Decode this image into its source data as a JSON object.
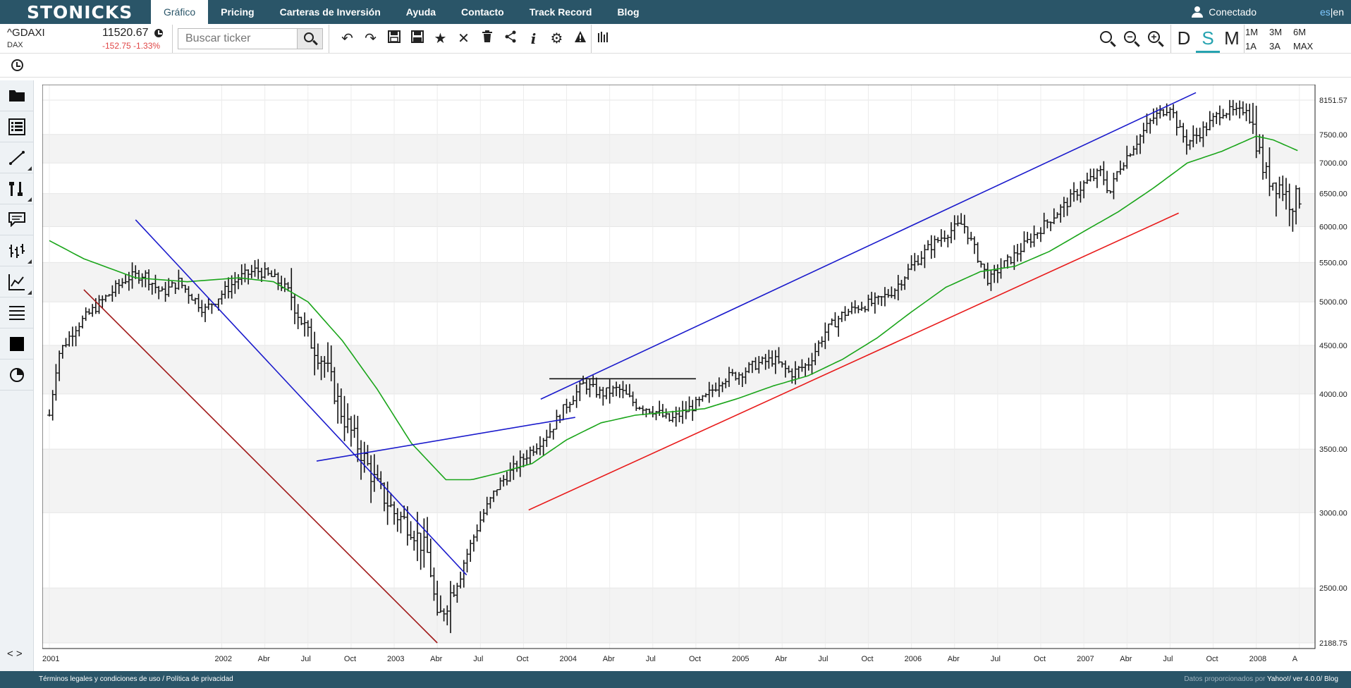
{
  "nav": {
    "brand": "STONICKS",
    "items": [
      "Gráfico",
      "Pricing",
      "Carteras de Inversión",
      "Ayuda",
      "Contacto",
      "Track Record",
      "Blog"
    ],
    "user": "Conectado",
    "lang_es": "es",
    "lang_sep": "|",
    "lang_en": "en"
  },
  "ticker": {
    "symbol": "^GDAXI",
    "name": "DAX",
    "price": "11520.67",
    "change": "-152.75 -1.33%"
  },
  "search": {
    "placeholder": "Buscar ticker"
  },
  "toolbar_icons": [
    "undo-icon",
    "redo-icon",
    "save-icon",
    "save-all-icon",
    "star-icon",
    "delete-icon",
    "trash-icon",
    "share-icon",
    "info-icon",
    "settings-icon",
    "warning-icon",
    "bars-icon"
  ],
  "periods": [
    "D",
    "S",
    "M"
  ],
  "active_period": "S",
  "ranges": [
    "1M",
    "3M",
    "6M",
    "1A",
    "3A",
    "MAX"
  ],
  "sidebar_icons": [
    "folder-icon",
    "list-icon",
    "line-tool-icon",
    "tools-icon",
    "comment-icon",
    "indicator-icon",
    "line-chart-icon",
    "lines-icon",
    "color-square-icon",
    "pie-icon"
  ],
  "expand_label": "< >",
  "footer": {
    "left": "Términos legales y condiciones de uso / Política de privacidad",
    "right_prefix": "Datos proporcionados por",
    "right_links": "Yahoo!/ ver 4.0.0/ Blog"
  },
  "chart_data": {
    "type": "bar",
    "subtype": "ohlc-weekly",
    "scale": "log",
    "ylim": [
      2188.75,
      8151.57
    ],
    "y_ticks": [
      "8151.57",
      "7500.00",
      "7000.00",
      "6500.00",
      "6000.00",
      "5500.00",
      "5000.00",
      "4500.00",
      "4000.00",
      "3500.00",
      "3000.00",
      "2500.00",
      "2188.75"
    ],
    "x_ticks": [
      "2001",
      "2002",
      "Abr",
      "Jul",
      "Oct",
      "2003",
      "Abr",
      "Jul",
      "Oct",
      "2004",
      "Abr",
      "Jul",
      "Oct",
      "2005",
      "Abr",
      "Jul",
      "Oct",
      "2006",
      "Abr",
      "Jul",
      "Oct",
      "2007",
      "Abr",
      "Jul",
      "Oct",
      "2008",
      "A"
    ],
    "grid": true,
    "close_path": [
      [
        2001.0,
        3800
      ],
      [
        2001.05,
        4400
      ],
      [
        2001.15,
        4700
      ],
      [
        2001.3,
        5000
      ],
      [
        2001.45,
        5300
      ],
      [
        2001.55,
        5350
      ],
      [
        2001.65,
        5100
      ],
      [
        2001.75,
        5250
      ],
      [
        2001.9,
        4900
      ],
      [
        2002.0,
        5100
      ],
      [
        2002.1,
        5300
      ],
      [
        2002.2,
        5400
      ],
      [
        2002.3,
        5300
      ],
      [
        2002.4,
        5100
      ],
      [
        2002.5,
        4600
      ],
      [
        2002.6,
        4300
      ],
      [
        2002.7,
        3800
      ],
      [
        2002.8,
        3500
      ],
      [
        2002.9,
        3200
      ],
      [
        2003.0,
        3000
      ],
      [
        2003.1,
        2900
      ],
      [
        2003.2,
        2700
      ],
      [
        2003.25,
        2300
      ],
      [
        2003.32,
        2450
      ],
      [
        2003.4,
        2650
      ],
      [
        2003.5,
        2950
      ],
      [
        2003.6,
        3200
      ],
      [
        2003.7,
        3350
      ],
      [
        2003.8,
        3500
      ],
      [
        2003.9,
        3650
      ],
      [
        2004.0,
        3900
      ],
      [
        2004.1,
        4100
      ],
      [
        2004.2,
        4000
      ],
      [
        2004.3,
        4050
      ],
      [
        2004.4,
        3900
      ],
      [
        2004.5,
        3850
      ],
      [
        2004.6,
        3750
      ],
      [
        2004.7,
        3850
      ],
      [
        2004.8,
        3950
      ],
      [
        2004.9,
        4150
      ],
      [
        2005.0,
        4200
      ],
      [
        2005.1,
        4300
      ],
      [
        2005.2,
        4350
      ],
      [
        2005.3,
        4200
      ],
      [
        2005.4,
        4300
      ],
      [
        2005.5,
        4650
      ],
      [
        2005.6,
        4850
      ],
      [
        2005.7,
        4950
      ],
      [
        2005.8,
        5000
      ],
      [
        2005.9,
        5150
      ],
      [
        2006.0,
        5450
      ],
      [
        2006.1,
        5700
      ],
      [
        2006.2,
        5900
      ],
      [
        2006.3,
        6050
      ],
      [
        2006.38,
        5600
      ],
      [
        2006.45,
        5250
      ],
      [
        2006.5,
        5400
      ],
      [
        2006.6,
        5600
      ],
      [
        2006.7,
        5850
      ],
      [
        2006.8,
        6100
      ],
      [
        2006.9,
        6350
      ],
      [
        2007.0,
        6650
      ],
      [
        2007.1,
        6850
      ],
      [
        2007.15,
        6500
      ],
      [
        2007.2,
        6900
      ],
      [
        2007.3,
        7350
      ],
      [
        2007.4,
        7800
      ],
      [
        2007.5,
        8050
      ],
      [
        2007.55,
        7600
      ],
      [
        2007.6,
        7350
      ],
      [
        2007.7,
        7600
      ],
      [
        2007.8,
        7950
      ],
      [
        2007.9,
        7900
      ],
      [
        2007.95,
        8050
      ],
      [
        2008.0,
        7400
      ],
      [
        2008.05,
        6800
      ],
      [
        2008.15,
        6600
      ],
      [
        2008.2,
        6350
      ],
      [
        2008.25,
        6450
      ]
    ],
    "moving_average": [
      [
        2001.0,
        5800
      ],
      [
        2001.2,
        5550
      ],
      [
        2001.5,
        5300
      ],
      [
        2001.8,
        5250
      ],
      [
        2002.1,
        5300
      ],
      [
        2002.3,
        5250
      ],
      [
        2002.5,
        5000
      ],
      [
        2002.7,
        4550
      ],
      [
        2002.9,
        4050
      ],
      [
        2003.1,
        3550
      ],
      [
        2003.3,
        3250
      ],
      [
        2003.45,
        3250
      ],
      [
        2003.6,
        3300
      ],
      [
        2003.8,
        3380
      ],
      [
        2004.0,
        3580
      ],
      [
        2004.2,
        3730
      ],
      [
        2004.4,
        3800
      ],
      [
        2004.6,
        3830
      ],
      [
        2004.8,
        3860
      ],
      [
        2005.0,
        3960
      ],
      [
        2005.2,
        4080
      ],
      [
        2005.4,
        4180
      ],
      [
        2005.6,
        4350
      ],
      [
        2005.8,
        4580
      ],
      [
        2006.0,
        4880
      ],
      [
        2006.2,
        5180
      ],
      [
        2006.4,
        5380
      ],
      [
        2006.6,
        5450
      ],
      [
        2006.8,
        5650
      ],
      [
        2007.0,
        5930
      ],
      [
        2007.2,
        6220
      ],
      [
        2007.4,
        6580
      ],
      [
        2007.6,
        7000
      ],
      [
        2007.8,
        7200
      ],
      [
        2008.0,
        7470
      ],
      [
        2008.1,
        7400
      ],
      [
        2008.25,
        7200
      ]
    ],
    "trendlines": [
      {
        "name": "resistance-2001",
        "color": "#a01818",
        "from": [
          2001.2,
          5150
        ],
        "to": [
          2003.25,
          2188.75
        ]
      },
      {
        "name": "downtrend",
        "color": "#1a1acc",
        "from": [
          2001.5,
          6100
        ],
        "to": [
          2003.42,
          2580
        ]
      },
      {
        "name": "neckline",
        "color": "#1a1acc",
        "from": [
          2002.55,
          3400
        ],
        "to": [
          2004.05,
          3780
        ]
      },
      {
        "name": "channel-top",
        "color": "#1a1acc",
        "from": [
          2003.85,
          3950
        ],
        "to": [
          2007.65,
          8300
        ]
      },
      {
        "name": "channel-bottom",
        "color": "#e81a1a",
        "from": [
          2003.78,
          3020
        ],
        "to": [
          2007.55,
          6200
        ]
      },
      {
        "name": "horizontal-resistance",
        "color": "#111111",
        "from": [
          2003.9,
          4150
        ],
        "to": [
          2004.75,
          4150
        ]
      }
    ],
    "colors": {
      "bars": "#111111",
      "ma": "#1aa51a",
      "grid_band": "#f3f3f3",
      "grid_line": "#e6e6e6"
    }
  }
}
